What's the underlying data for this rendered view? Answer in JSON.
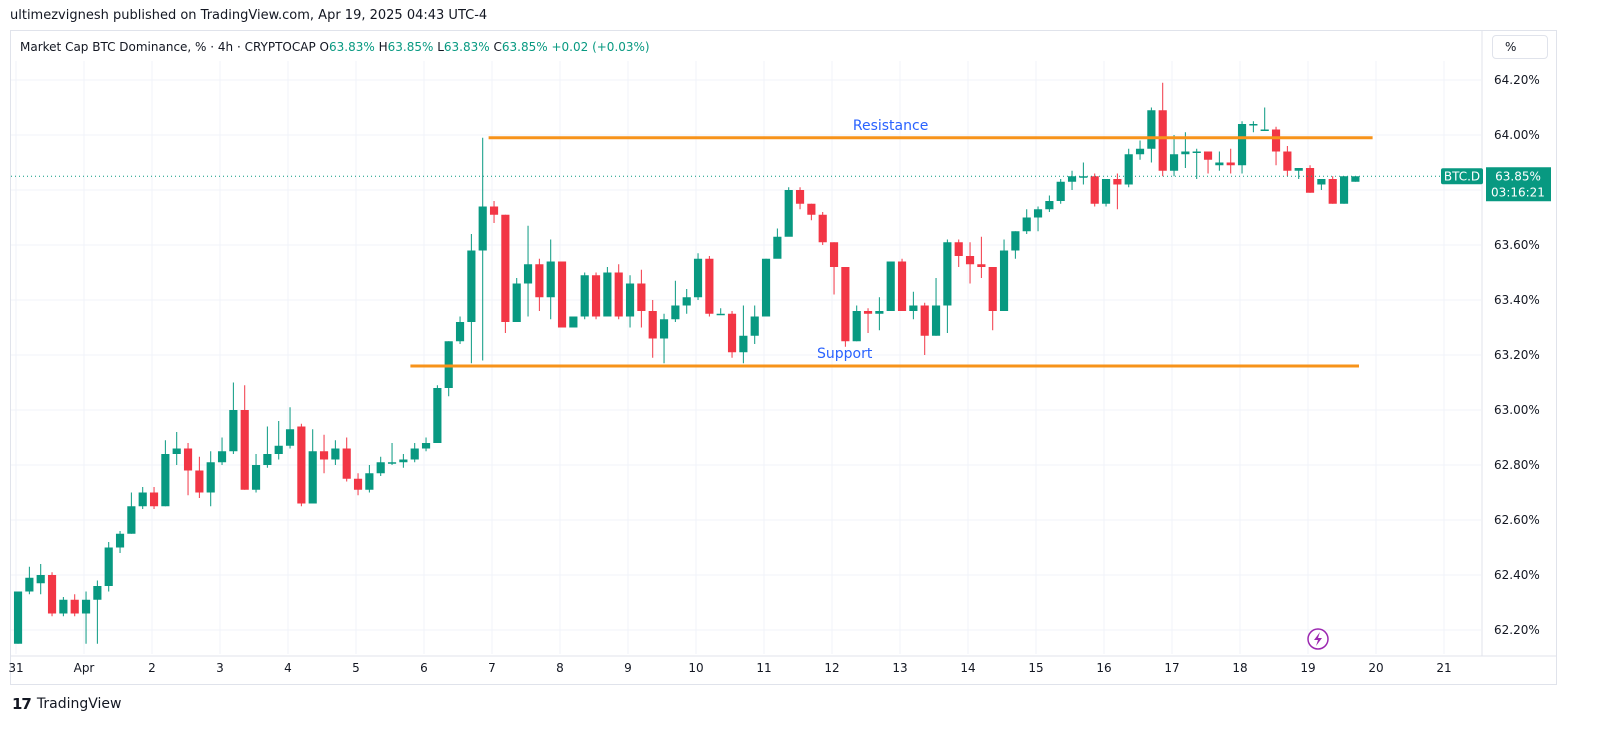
{
  "publisher_line": "ultimezvignesh published on TradingView.com, Apr 19, 2025 04:43 UTC-4",
  "legend": {
    "symbol": "Market Cap BTC Dominance, % · 4h · CRYPTOCAP",
    "o_label": "O",
    "o_value": "63.83%",
    "h_label": "H",
    "h_value": "63.85%",
    "l_label": "L",
    "l_value": "63.83%",
    "c_label": "C",
    "c_value": "63.85%",
    "change": "+0.02 (+0.03%)"
  },
  "scale_button": "%",
  "price_tag": {
    "symbol": "BTC.D",
    "price": "63.85%",
    "countdown": "03:16:21"
  },
  "footer": {
    "brand": "TradingView"
  },
  "colors": {
    "up": "#089981",
    "down": "#f23645",
    "lines": "#f7931a",
    "annotation": "#2962ff",
    "grid": "#f0f3fa"
  },
  "chart_data": {
    "type": "candlestick",
    "title": "Market Cap BTC Dominance, % · 4h · CRYPTOCAP",
    "ylim": [
      62.1,
      64.3
    ],
    "y_ticks": [
      "64.20%",
      "64.00%",
      "63.80%",
      "63.60%",
      "63.40%",
      "63.20%",
      "63.00%",
      "62.80%",
      "62.60%",
      "62.40%",
      "62.20%"
    ],
    "x_ticks": [
      {
        "day": -1,
        "label": "31"
      },
      {
        "day": 0,
        "label": "Apr"
      },
      {
        "day": 1,
        "label": "2"
      },
      {
        "day": 2,
        "label": "3"
      },
      {
        "day": 3,
        "label": "4"
      },
      {
        "day": 4,
        "label": "5"
      },
      {
        "day": 5,
        "label": "6"
      },
      {
        "day": 6,
        "label": "7"
      },
      {
        "day": 7,
        "label": "8"
      },
      {
        "day": 8,
        "label": "9"
      },
      {
        "day": 9,
        "label": "10"
      },
      {
        "day": 10,
        "label": "11"
      },
      {
        "day": 11,
        "label": "12"
      },
      {
        "day": 12,
        "label": "13"
      },
      {
        "day": 13,
        "label": "14"
      },
      {
        "day": 14,
        "label": "15"
      },
      {
        "day": 15,
        "label": "16"
      },
      {
        "day": 16,
        "label": "17"
      },
      {
        "day": 17,
        "label": "18"
      },
      {
        "day": 18,
        "label": "19"
      },
      {
        "day": 19,
        "label": "20"
      },
      {
        "day": 20,
        "label": "21"
      }
    ],
    "grid": true,
    "annotations": [
      {
        "label": "Resistance",
        "y": 63.99,
        "x_start_day": 5.95,
        "x_end_day": 18.95
      },
      {
        "label": "Support",
        "y": 63.16,
        "x_start_day": 4.8,
        "x_end_day": 18.75
      }
    ],
    "last_price": 63.85,
    "candles": [
      [
        62.15,
        62.34,
        62.15,
        62.34
      ],
      [
        62.34,
        62.39,
        62.43,
        62.33
      ],
      [
        62.37,
        62.4,
        62.44,
        62.33
      ],
      [
        62.4,
        62.26,
        62.41,
        62.25
      ],
      [
        62.26,
        62.31,
        62.32,
        62.25
      ],
      [
        62.31,
        62.26,
        62.33,
        62.25
      ],
      [
        62.26,
        62.31,
        62.34,
        62.15
      ],
      [
        62.31,
        62.36,
        62.38,
        62.15
      ],
      [
        62.36,
        62.5,
        62.52,
        62.34
      ],
      [
        62.5,
        62.55,
        62.56,
        62.48
      ],
      [
        62.55,
        62.65,
        62.7,
        62.55
      ],
      [
        62.65,
        62.7,
        62.72,
        62.64
      ],
      [
        62.7,
        62.65,
        62.72,
        62.64
      ],
      [
        62.65,
        62.84,
        62.89,
        62.65
      ],
      [
        62.84,
        62.86,
        62.92,
        62.8
      ],
      [
        62.86,
        62.78,
        62.88,
        62.69
      ],
      [
        62.78,
        62.7,
        62.83,
        62.68
      ],
      [
        62.7,
        62.81,
        62.85,
        62.65
      ],
      [
        62.81,
        62.85,
        62.9,
        62.8
      ],
      [
        62.85,
        63.0,
        63.1,
        62.84
      ],
      [
        63.0,
        62.71,
        63.09,
        62.71
      ],
      [
        62.71,
        62.8,
        62.84,
        62.7
      ],
      [
        62.8,
        62.84,
        62.94,
        62.79
      ],
      [
        62.84,
        62.87,
        62.96,
        62.82
      ],
      [
        62.87,
        62.93,
        63.01,
        62.86
      ],
      [
        62.94,
        62.66,
        62.95,
        62.65
      ],
      [
        62.66,
        62.85,
        62.93,
        62.66
      ],
      [
        62.85,
        62.82,
        62.91,
        62.77
      ],
      [
        62.82,
        62.86,
        62.89,
        62.8
      ],
      [
        62.86,
        62.75,
        62.9,
        62.74
      ],
      [
        62.75,
        62.71,
        62.77,
        62.69
      ],
      [
        62.71,
        62.77,
        62.8,
        62.7
      ],
      [
        62.77,
        62.81,
        62.83,
        62.76
      ],
      [
        62.81,
        62.81,
        62.88,
        62.8
      ],
      [
        62.81,
        62.82,
        62.84,
        62.79
      ],
      [
        62.82,
        62.86,
        62.88,
        62.81
      ],
      [
        62.86,
        62.88,
        62.9,
        62.85
      ],
      [
        62.88,
        63.08,
        63.09,
        62.88
      ],
      [
        63.08,
        63.25,
        63.25,
        63.05
      ],
      [
        63.25,
        63.32,
        63.34,
        63.24
      ],
      [
        63.32,
        63.58,
        63.64,
        63.17
      ],
      [
        63.58,
        63.74,
        63.99,
        63.18
      ],
      [
        63.74,
        63.71,
        63.76,
        63.68
      ],
      [
        63.71,
        63.32,
        63.71,
        63.28
      ],
      [
        63.32,
        63.46,
        63.48,
        63.32
      ],
      [
        63.46,
        63.53,
        63.67,
        63.34
      ],
      [
        63.53,
        63.41,
        63.55,
        63.36
      ],
      [
        63.41,
        63.54,
        63.62,
        63.33
      ],
      [
        63.54,
        63.3,
        63.54,
        63.3
      ],
      [
        63.3,
        63.34,
        63.34,
        63.3
      ],
      [
        63.34,
        63.49,
        63.5,
        63.33
      ],
      [
        63.49,
        63.34,
        63.5,
        63.33
      ],
      [
        63.34,
        63.5,
        63.52,
        63.34
      ],
      [
        63.5,
        63.34,
        63.53,
        63.33
      ],
      [
        63.34,
        63.46,
        63.49,
        63.3
      ],
      [
        63.46,
        63.36,
        63.51,
        63.3
      ],
      [
        63.36,
        63.26,
        63.4,
        63.19
      ],
      [
        63.26,
        63.33,
        63.35,
        63.17
      ],
      [
        63.33,
        63.38,
        63.47,
        63.32
      ],
      [
        63.38,
        63.41,
        63.44,
        63.35
      ],
      [
        63.41,
        63.55,
        63.57,
        63.4
      ],
      [
        63.55,
        63.35,
        63.56,
        63.34
      ],
      [
        63.35,
        63.35,
        63.37,
        63.35
      ],
      [
        63.35,
        63.21,
        63.36,
        63.19
      ],
      [
        63.21,
        63.27,
        63.38,
        63.17
      ],
      [
        63.27,
        63.34,
        63.38,
        63.24
      ],
      [
        63.34,
        63.55,
        63.55,
        63.34
      ],
      [
        63.55,
        63.63,
        63.66,
        63.57
      ],
      [
        63.63,
        63.8,
        63.81,
        63.64
      ],
      [
        63.8,
        63.75,
        63.81,
        63.73
      ],
      [
        63.75,
        63.71,
        63.75,
        63.69
      ],
      [
        63.71,
        63.61,
        63.72,
        63.6
      ],
      [
        63.61,
        63.52,
        63.61,
        63.42
      ],
      [
        63.52,
        63.25,
        63.52,
        63.23
      ],
      [
        63.25,
        63.36,
        63.38,
        63.25
      ],
      [
        63.36,
        63.35,
        63.37,
        63.28
      ],
      [
        63.35,
        63.36,
        63.41,
        63.29
      ],
      [
        63.36,
        63.54,
        63.54,
        63.36
      ],
      [
        63.54,
        63.36,
        63.55,
        63.36
      ],
      [
        63.36,
        63.38,
        63.43,
        63.33
      ],
      [
        63.38,
        63.27,
        63.39,
        63.2
      ],
      [
        63.27,
        63.38,
        63.48,
        63.27
      ],
      [
        63.38,
        63.61,
        63.62,
        63.28
      ],
      [
        63.61,
        63.56,
        63.62,
        63.52
      ],
      [
        63.56,
        63.53,
        63.61,
        63.46
      ],
      [
        63.53,
        63.52,
        63.63,
        63.48
      ],
      [
        63.52,
        63.36,
        63.52,
        63.29
      ],
      [
        63.36,
        63.58,
        63.62,
        63.36
      ],
      [
        63.58,
        63.65,
        63.65,
        63.55
      ],
      [
        63.65,
        63.7,
        63.73,
        63.64
      ],
      [
        63.7,
        63.73,
        63.74,
        63.65
      ],
      [
        63.73,
        63.76,
        63.78,
        63.72
      ],
      [
        63.76,
        63.83,
        63.84,
        63.75
      ],
      [
        63.83,
        63.85,
        63.87,
        63.8
      ],
      [
        63.85,
        63.85,
        63.9,
        63.82
      ],
      [
        63.85,
        63.75,
        63.86,
        63.74
      ],
      [
        63.75,
        63.84,
        63.84,
        63.74
      ],
      [
        63.84,
        63.82,
        63.86,
        63.73
      ],
      [
        63.82,
        63.93,
        63.95,
        63.81
      ],
      [
        63.93,
        63.95,
        63.98,
        63.91
      ],
      [
        63.95,
        64.09,
        64.1,
        63.9
      ],
      [
        64.09,
        63.87,
        64.19,
        63.85
      ],
      [
        63.87,
        63.93,
        64.0,
        63.85
      ],
      [
        63.93,
        63.94,
        64.01,
        63.88
      ],
      [
        63.94,
        63.94,
        63.95,
        63.84
      ],
      [
        63.94,
        63.91,
        63.93,
        63.86
      ],
      [
        63.89,
        63.9,
        63.94,
        63.87
      ],
      [
        63.9,
        63.89,
        63.95,
        63.86
      ],
      [
        63.89,
        64.04,
        64.05,
        63.86
      ],
      [
        64.04,
        64.04,
        64.05,
        64.01
      ],
      [
        64.02,
        64.02,
        64.1,
        64.02
      ],
      [
        64.02,
        63.94,
        64.03,
        63.89
      ],
      [
        63.94,
        63.87,
        63.96,
        63.85
      ],
      [
        63.87,
        63.88,
        63.88,
        63.84
      ],
      [
        63.88,
        63.79,
        63.89,
        63.79
      ],
      [
        63.82,
        63.84,
        63.84,
        63.8
      ],
      [
        63.84,
        63.75,
        63.85,
        63.75
      ],
      [
        63.75,
        63.85,
        63.85,
        63.75
      ],
      [
        63.83,
        63.85,
        63.85,
        63.83
      ]
    ]
  }
}
